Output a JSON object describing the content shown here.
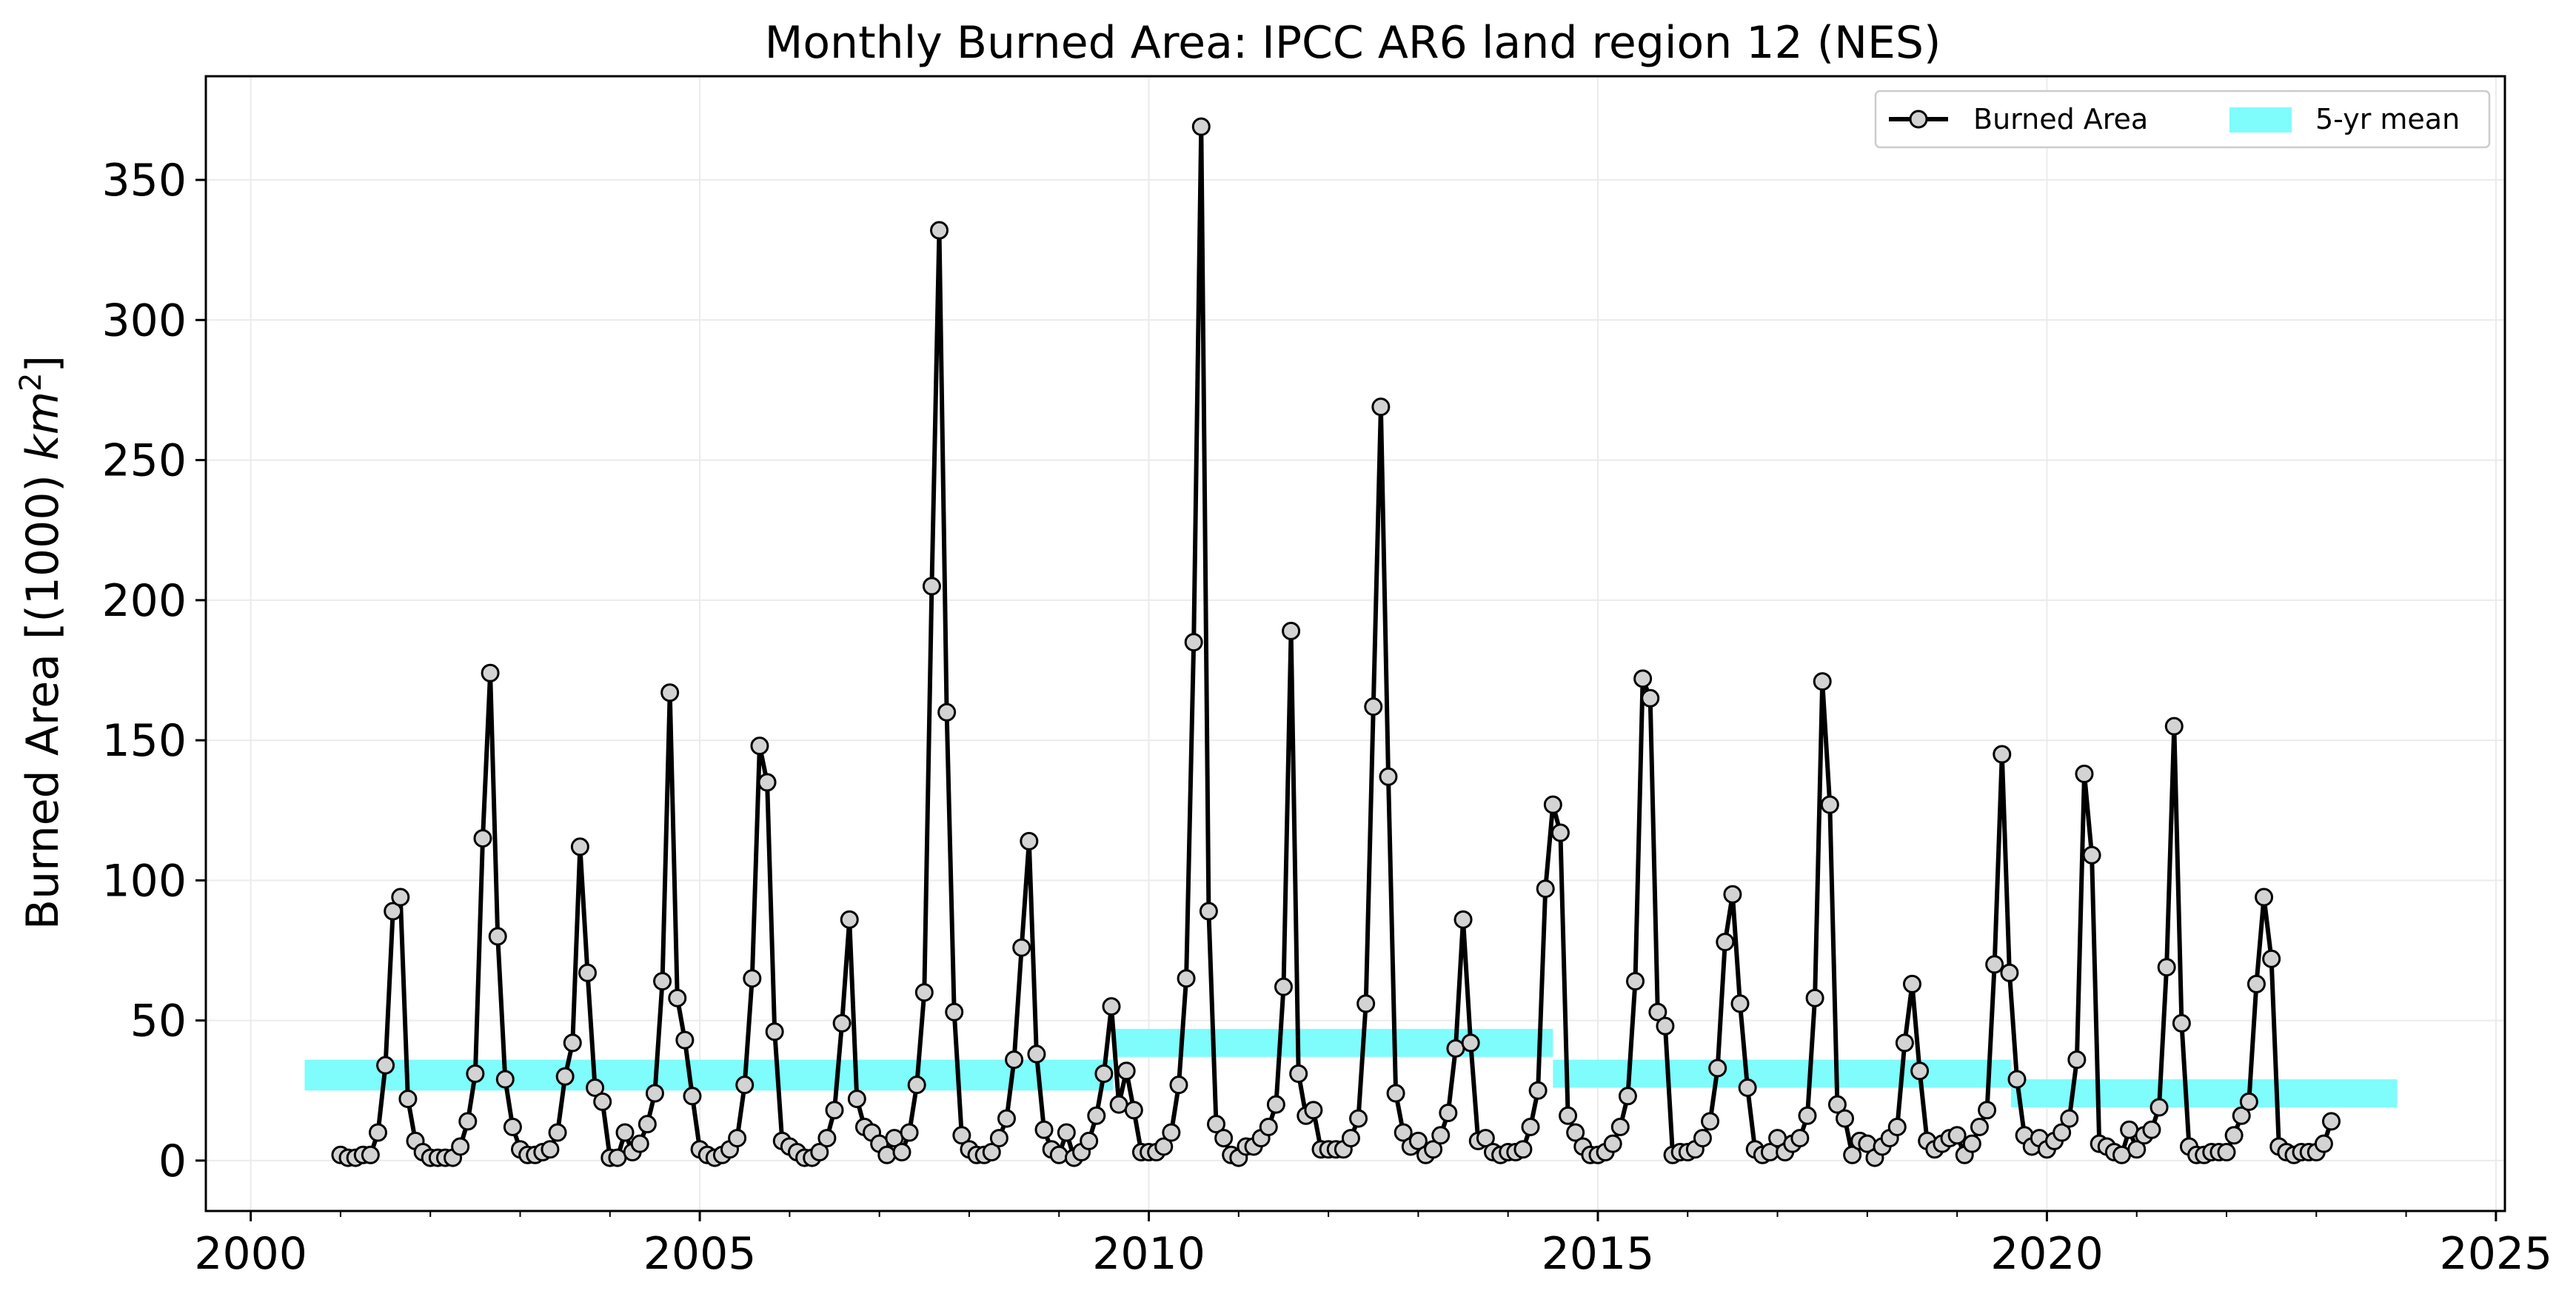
{
  "chart_data": {
    "type": "line",
    "title": "Monthly Burned Area: IPCC AR6 land region 12 (NES)",
    "xlabel": "",
    "ylabel": "Burned Area [(1000) km²]",
    "xlim": [
      1999.5,
      2025.1
    ],
    "ylim": [
      -18,
      387
    ],
    "x_ticks": [
      2000,
      2005,
      2010,
      2015,
      2020,
      2025
    ],
    "y_ticks": [
      0,
      50,
      100,
      150,
      200,
      250,
      300,
      350
    ],
    "grid": true,
    "legend_position": "top-right",
    "legend": [
      "Burned Area",
      "5-yr mean"
    ],
    "colors": {
      "line": "#000000",
      "marker_fill": "#d3d3d3",
      "mean_band": "#7ffcfc"
    },
    "series": [
      {
        "name": "Burned Area",
        "start_year": 2001,
        "start_month": 1,
        "values": [
          2,
          1,
          1,
          2,
          2,
          10,
          34,
          89,
          94,
          22,
          7,
          3,
          1,
          1,
          1,
          1,
          5,
          14,
          31,
          115,
          174,
          80,
          29,
          12,
          4,
          2,
          2,
          3,
          4,
          10,
          30,
          42,
          112,
          67,
          26,
          21,
          1,
          1,
          10,
          3,
          6,
          13,
          24,
          64,
          167,
          58,
          43,
          23,
          4,
          2,
          1,
          2,
          4,
          8,
          27,
          65,
          148,
          135,
          46,
          7,
          5,
          3,
          1,
          1,
          3,
          8,
          18,
          49,
          86,
          22,
          12,
          10,
          6,
          2,
          8,
          3,
          10,
          27,
          60,
          205,
          332,
          160,
          53,
          9,
          4,
          2,
          2,
          3,
          8,
          15,
          36,
          76,
          114,
          38,
          11,
          4,
          2,
          10,
          1,
          3,
          7,
          16,
          31,
          55,
          20,
          32,
          18,
          3,
          3,
          3,
          5,
          10,
          27,
          65,
          185,
          369,
          89,
          13,
          8,
          2,
          1,
          5,
          5,
          8,
          12,
          20,
          62,
          189,
          31,
          16,
          18,
          4,
          4,
          4,
          4,
          8,
          15,
          56,
          162,
          269,
          137,
          24,
          10,
          5,
          7,
          2,
          4,
          9,
          17,
          40,
          86,
          42,
          7,
          8,
          3,
          2,
          3,
          3,
          4,
          12,
          25,
          97,
          127,
          117,
          16,
          10,
          5,
          2,
          2,
          3,
          6,
          12,
          23,
          64,
          172,
          165,
          53,
          48,
          2,
          3,
          3,
          4,
          8,
          14,
          33,
          78,
          95,
          56,
          26,
          4,
          2,
          3,
          8,
          3,
          6,
          8,
          16,
          58,
          171,
          127,
          20,
          15,
          2,
          7,
          6,
          1,
          5,
          8,
          12,
          42,
          63,
          32,
          7,
          4,
          6,
          8,
          9,
          2,
          6,
          12,
          18,
          70,
          145,
          67,
          29,
          9,
          5,
          8,
          4,
          7,
          10,
          15,
          36,
          138,
          109,
          6,
          5,
          3,
          2,
          11,
          4,
          9,
          11,
          19,
          69,
          155,
          49,
          5,
          2,
          2,
          3,
          3,
          3,
          9,
          16,
          21,
          63,
          94,
          72,
          5,
          3,
          2,
          3,
          3,
          3,
          6,
          14
        ]
      },
      {
        "name": "5-yr mean",
        "segments": [
          {
            "x_start": 2000.6,
            "x_end": 2009.6,
            "y_low": 25,
            "y_high": 36
          },
          {
            "x_start": 2009.6,
            "x_end": 2014.5,
            "y_low": 37,
            "y_high": 47
          },
          {
            "x_start": 2014.5,
            "x_end": 2019.6,
            "y_low": 26,
            "y_high": 36
          },
          {
            "x_start": 2019.6,
            "x_end": 2023.9,
            "y_low": 19,
            "y_high": 29
          }
        ]
      }
    ]
  }
}
